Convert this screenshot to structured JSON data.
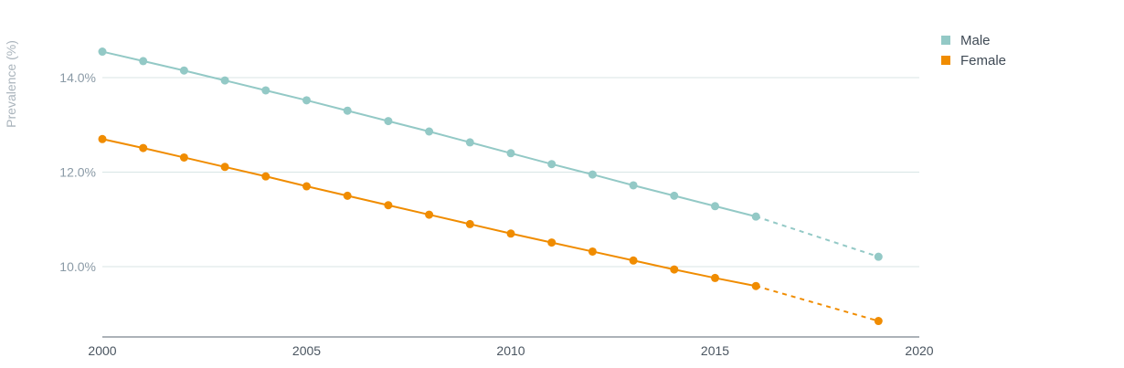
{
  "chart_data": {
    "type": "line",
    "ylabel": "Prevalence (%)",
    "xlabel": "",
    "xlim": [
      2000,
      2020
    ],
    "ylim": [
      8.5,
      15
    ],
    "x_ticks": [
      {
        "value": 2000,
        "label": "2000"
      },
      {
        "value": 2005,
        "label": "2005"
      },
      {
        "value": 2010,
        "label": "2010"
      },
      {
        "value": 2015,
        "label": "2015"
      },
      {
        "value": 2020,
        "label": "2020"
      }
    ],
    "y_ticks": [
      {
        "value": 10,
        "label": "10.0%"
      },
      {
        "value": 12,
        "label": "12.0%"
      },
      {
        "value": 14,
        "label": "14.0%"
      }
    ],
    "grid": "horizontal",
    "legend_position": "top-right",
    "series": [
      {
        "name": "Male",
        "color": "#93c9c6",
        "x": [
          2000,
          2001,
          2002,
          2003,
          2004,
          2005,
          2006,
          2007,
          2008,
          2009,
          2010,
          2011,
          2012,
          2013,
          2014,
          2015,
          2016,
          2019
        ],
        "values": [
          14.55,
          14.35,
          14.15,
          13.94,
          13.73,
          13.52,
          13.3,
          13.08,
          12.86,
          12.63,
          12.4,
          12.17,
          11.95,
          11.72,
          11.5,
          11.28,
          11.06,
          10.21
        ],
        "dashed_from_x": 2016
      },
      {
        "name": "Female",
        "color": "#f08c00",
        "x": [
          2000,
          2001,
          2002,
          2003,
          2004,
          2005,
          2006,
          2007,
          2008,
          2009,
          2010,
          2011,
          2012,
          2013,
          2014,
          2015,
          2016,
          2019
        ],
        "values": [
          12.7,
          12.51,
          12.31,
          12.11,
          11.91,
          11.7,
          11.5,
          11.3,
          11.1,
          10.9,
          10.7,
          10.51,
          10.32,
          10.13,
          9.94,
          9.76,
          9.59,
          8.85
        ],
        "dashed_from_x": 2016
      }
    ]
  }
}
